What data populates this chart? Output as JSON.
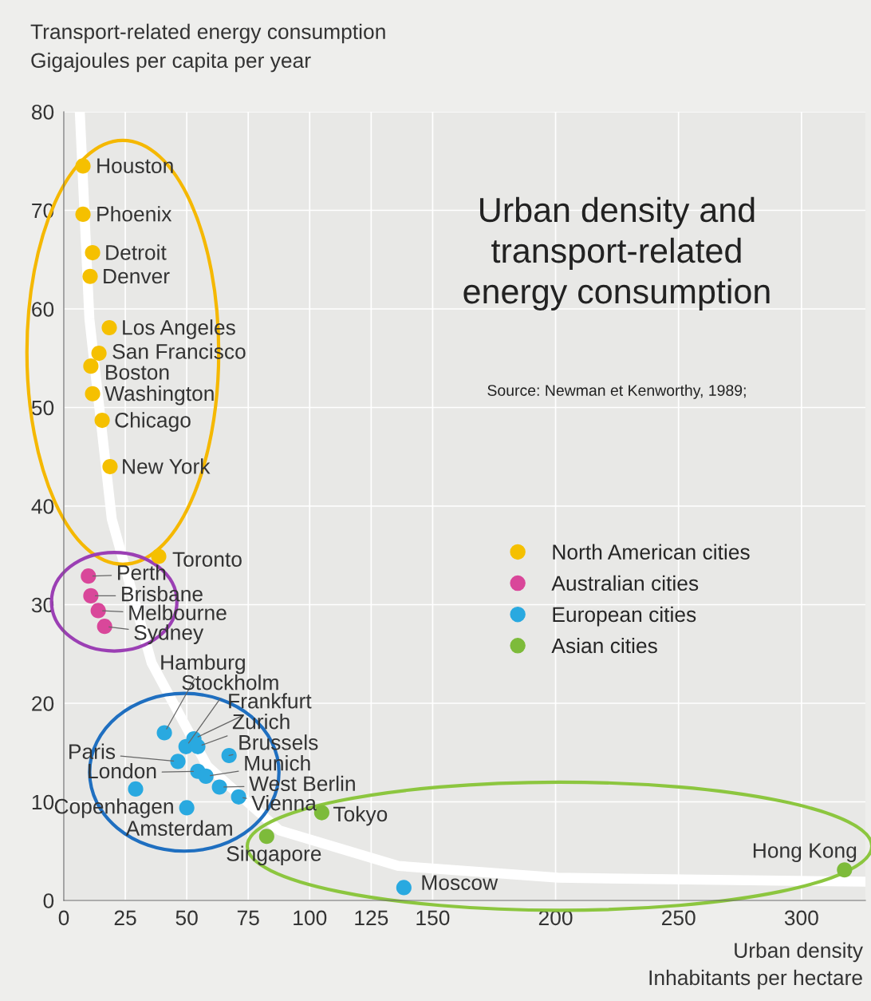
{
  "chart_data": {
    "type": "scatter",
    "title": "Urban density and\ntransport-related\nenergy consumption",
    "xlabel": "Urban density\nInhabitants per hectare",
    "ylabel": "Transport-related energy consumption\nGigajoules per capita per year",
    "xlim": [
      0,
      326
    ],
    "xticks": [
      0,
      25,
      50,
      75,
      100,
      125,
      150,
      200,
      250,
      300
    ],
    "ylim": [
      0,
      80
    ],
    "yticks": [
      0,
      10,
      20,
      30,
      40,
      50,
      60,
      70,
      80
    ],
    "grid": true,
    "legend": "right",
    "series": [
      {
        "type": "line",
        "color": "#ffffff",
        "x": [
          6.5,
          10.4,
          19.5,
          35.7,
          58.4,
          87.7,
          136,
          201,
          326
        ],
        "values": [
          80,
          59,
          38.7,
          24.1,
          13.6,
          7.1,
          3.5,
          2.3,
          1.9
        ]
      },
      {
        "name": "North American cities",
        "marker": "circle",
        "color": "#f5c000",
        "x": [
          7.8,
          7.8,
          11.7,
          10.7,
          18.5,
          14.3,
          11,
          11.7,
          15.6,
          18.8,
          38.6
        ],
        "values": [
          74.5,
          69.6,
          65.7,
          63.3,
          58.1,
          55.5,
          54.2,
          51.4,
          48.7,
          44,
          34.9
        ]
      },
      {
        "name": "Australian cities",
        "marker": "circle",
        "color": "#d9479a",
        "x": [
          10,
          11,
          14,
          16.6
        ],
        "values": [
          32.9,
          30.9,
          29.4,
          27.8
        ]
      },
      {
        "name": "European cities",
        "marker": "circle",
        "color": "#29a9e0",
        "x": [
          40.9,
          49.7,
          52.9,
          54.5,
          67.2,
          46.4,
          54.5,
          57.8,
          63.3,
          71.1,
          29.2,
          50,
          138.3
        ],
        "values": [
          17,
          15.6,
          16.4,
          15.6,
          14.7,
          14.1,
          13.1,
          12.6,
          11.5,
          10.5,
          11.3,
          9.4,
          1.3
        ]
      },
      {
        "name": "Asian cities",
        "marker": "circle",
        "color": "#7dbb3a",
        "x": [
          104.9,
          82.5,
          317.5
        ],
        "values": [
          8.9,
          6.5,
          3.1
        ]
      }
    ],
    "annotations": [
      "Source: Newman et Kenworthy, 1989;",
      {
        "text": "Houston",
        "x": 7.8,
        "y": 74.5
      },
      {
        "text": "Phoenix",
        "x": 7.8,
        "y": 69.6
      },
      {
        "text": "Detroit",
        "x": 11.7,
        "y": 65.7
      },
      {
        "text": "Denver",
        "x": 10.7,
        "y": 63.3
      },
      {
        "text": "Los Angeles",
        "x": 18.5,
        "y": 58.1
      },
      {
        "text": "San Francisco",
        "x": 14.3,
        "y": 55.5
      },
      {
        "text": "Boston",
        "x": 11,
        "y": 54.2
      },
      {
        "text": "Washington",
        "x": 11.7,
        "y": 51.4
      },
      {
        "text": "Chicago",
        "x": 15.6,
        "y": 48.7
      },
      {
        "text": "New York",
        "x": 18.8,
        "y": 44
      },
      {
        "text": "Toronto",
        "x": 38.6,
        "y": 34.9
      },
      {
        "text": "Perth",
        "x": 10,
        "y": 32.9
      },
      {
        "text": "Brisbane",
        "x": 11,
        "y": 30.9
      },
      {
        "text": "Melbourne",
        "x": 14,
        "y": 29.4
      },
      {
        "text": "Sydney",
        "x": 16.6,
        "y": 27.8
      },
      {
        "text": "Hamburg",
        "x": 40.9,
        "y": 17
      },
      {
        "text": "Stockholm",
        "x": 49.7,
        "y": 15.6
      },
      {
        "text": "Frankfurt",
        "x": 52.9,
        "y": 16.4
      },
      {
        "text": "Zurich",
        "x": 54.5,
        "y": 15.6
      },
      {
        "text": "Brussels",
        "x": 67.2,
        "y": 14.7
      },
      {
        "text": "Paris",
        "x": 46.4,
        "y": 14.1
      },
      {
        "text": "London",
        "x": 54.5,
        "y": 13.1
      },
      {
        "text": "Munich",
        "x": 57.8,
        "y": 12.6
      },
      {
        "text": "West Berlin",
        "x": 63.3,
        "y": 11.5
      },
      {
        "text": "Vienna",
        "x": 71.1,
        "y": 10.5
      },
      {
        "text": "Copenhagen",
        "x": 29.2,
        "y": 11.3
      },
      {
        "text": "Amsterdam",
        "x": 50,
        "y": 9.4
      },
      {
        "text": "Moscow",
        "x": 138.3,
        "y": 1.3
      },
      {
        "text": "Tokyo",
        "x": 104.9,
        "y": 8.9
      },
      {
        "text": "Singapore",
        "x": 82.5,
        "y": 6.5
      },
      {
        "text": "Hong Kong",
        "x": 317.5,
        "y": 3.1
      }
    ]
  }
}
